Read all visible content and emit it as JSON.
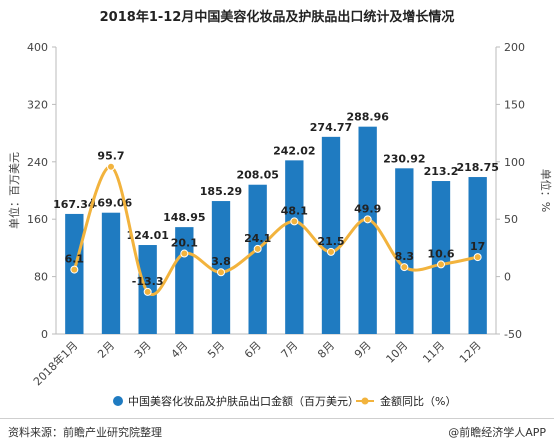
{
  "chart_data": {
    "type": "bar",
    "title": "2018年1-12月中国美容化妆品及护肤品出口统计及增长情况",
    "categories": [
      "2018年1月",
      "2月",
      "3月",
      "4月",
      "5月",
      "6月",
      "7月",
      "8月",
      "9月",
      "10月",
      "11月",
      "12月"
    ],
    "series": [
      {
        "name": "中国美容化妆品及护肤品出口金额（百万美元）",
        "type": "bar",
        "axis": "left",
        "values": [
          167.34,
          169.06,
          124.01,
          148.95,
          185.29,
          208.05,
          242.02,
          274.77,
          288.96,
          230.92,
          213.2,
          218.75
        ],
        "labels": [
          "167.34",
          "169.06",
          "124.01",
          "148.95",
          "185.29",
          "208.05",
          "242.02",
          "274.77",
          "288.96",
          "230.92",
          "213.2",
          "218.75"
        ]
      },
      {
        "name": "金额同比（%）",
        "type": "line",
        "axis": "right",
        "values": [
          6.1,
          95.7,
          -13.3,
          20.1,
          3.8,
          24.1,
          48.1,
          21.5,
          49.9,
          8.3,
          10.6,
          17
        ],
        "labels": [
          "6.1",
          "95.7",
          "-13.3",
          "20.1",
          "3.8",
          "24.1",
          "48.1",
          "21.5",
          "49.9",
          "8.3",
          "10.6",
          "17"
        ]
      }
    ],
    "ylabel": "单位：百万美元",
    "y2label": "单位：%",
    "ylim": [
      0,
      400
    ],
    "y2lim": [
      -50,
      200
    ],
    "yticks": [
      "0",
      "80",
      "160",
      "240",
      "320",
      "400"
    ],
    "y2ticks": [
      "-50",
      "0",
      "50",
      "100",
      "150",
      "200"
    ],
    "grid": false,
    "legend": "bottom",
    "colors": {
      "bar": "#1f7bc1",
      "line": "#f2b33d",
      "text": "#333333"
    }
  },
  "footer": {
    "source": "资料来源：前瞻产业研究院整理",
    "brand": "@前瞻经济学人APP"
  }
}
